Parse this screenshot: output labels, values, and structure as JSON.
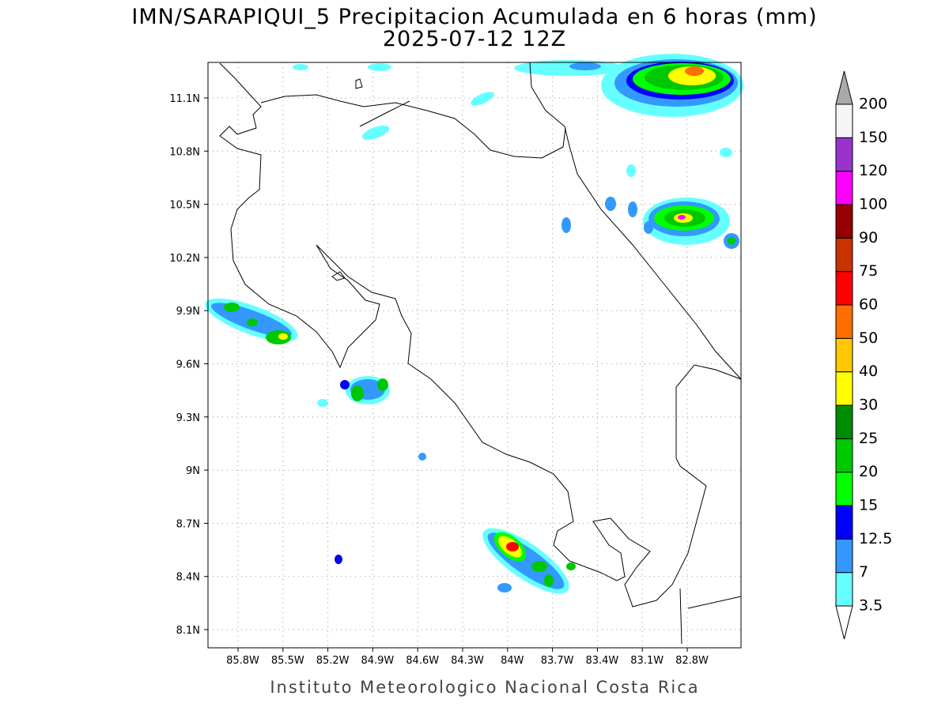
{
  "header": {
    "title": "IMN/SARAPIQUI_5 Precipitacion Acumulada en 6 horas (mm)",
    "subtitle": "2025-07-12 12Z"
  },
  "map": {
    "lat_labels": [
      "11.1N",
      "10.8N",
      "10.5N",
      "10.2N",
      "9.9N",
      "9.6N",
      "9.3N",
      "9N",
      "8.7N",
      "8.4N",
      "8.1N"
    ],
    "lon_labels": [
      "85.8W",
      "85.5W",
      "85.2W",
      "84.9W",
      "84.6W",
      "84.3W",
      "84W",
      "83.7W",
      "83.4W",
      "83.1W",
      "82.8W"
    ]
  },
  "colorbar": {
    "levels": [
      3.5,
      7,
      12.5,
      15,
      20,
      25,
      30,
      40,
      50,
      60,
      75,
      90,
      100,
      120,
      150,
      200
    ],
    "colors": [
      "#66ffff",
      "#3399ff",
      "#0000ff",
      "#00ff00",
      "#00c800",
      "#008c00",
      "#ffff00",
      "#ffc800",
      "#ff6e00",
      "#ff0000",
      "#c83200",
      "#960000",
      "#ff00ff",
      "#9933cc",
      "#f5f5f5"
    ],
    "under_color": "#ffffff",
    "over_color": "#aaaaaa"
  },
  "footer": "Instituto Meteorologico Nacional Costa Rica"
}
